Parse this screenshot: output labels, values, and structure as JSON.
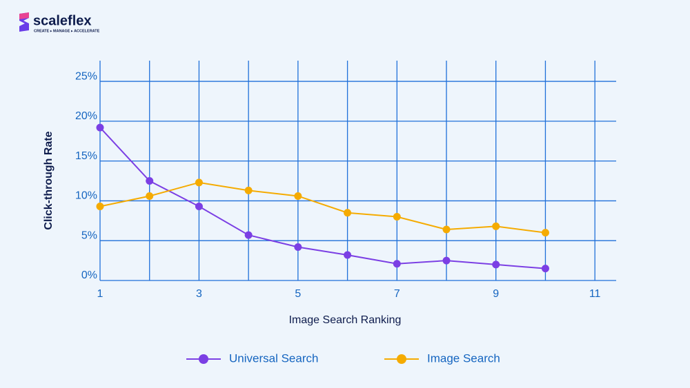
{
  "logo": {
    "name": "scaleflex",
    "tagline": "CREATE ▸ MANAGE ▸ ACCELERATE"
  },
  "chart_data": {
    "type": "line",
    "x_label": "Image Search Ranking",
    "y_label": "Click-through Rate",
    "x": [
      1,
      2,
      3,
      4,
      5,
      6,
      7,
      8,
      9,
      10
    ],
    "series": [
      {
        "name": "Universal Search",
        "color": "#7b3fe4",
        "values": [
          19.2,
          12.5,
          9.3,
          5.7,
          4.2,
          3.2,
          2.1,
          2.5,
          2.0,
          1.5
        ]
      },
      {
        "name": "Image Search",
        "color": "#f5ab00",
        "values": [
          9.3,
          10.6,
          12.3,
          11.3,
          10.6,
          8.5,
          8.0,
          6.4,
          6.8,
          6.0
        ]
      }
    ],
    "xlim": [
      1,
      11.43
    ],
    "xticks": [
      1,
      3,
      5,
      7,
      9,
      11
    ],
    "x_minor_grid": [
      2,
      4,
      6,
      8,
      10
    ],
    "ylim": [
      0,
      27.6
    ],
    "yticks": [
      {
        "value": 0,
        "label": "0%"
      },
      {
        "value": 5,
        "label": "5%"
      },
      {
        "value": 10,
        "label": "10%"
      },
      {
        "value": 15,
        "label": "15%"
      },
      {
        "value": 20,
        "label": "20%"
      },
      {
        "value": 25,
        "label": "25%"
      }
    ],
    "grid": true,
    "grid_color": "#1e6fd9",
    "legend": "bottom"
  }
}
